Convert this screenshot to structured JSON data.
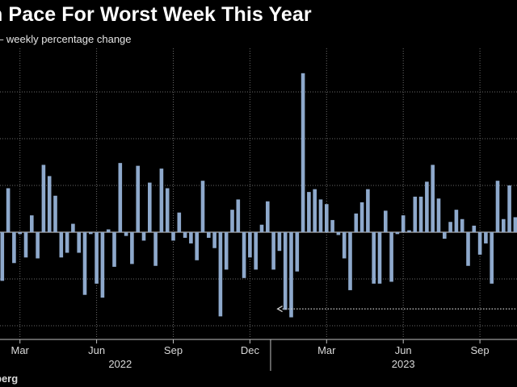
{
  "title": "n Pace For Worst Week This Year",
  "subtitle": "– weekly percentage change",
  "source": "berg",
  "chart_data": {
    "type": "bar",
    "ylim": [
      -1.05,
      1.7
    ],
    "y_gridlines": [
      -1,
      -0.5,
      0,
      0.5,
      1,
      1.5
    ],
    "values": [
      -0.52,
      0.47,
      -0.33,
      -0.02,
      -0.27,
      0.18,
      -0.28,
      0.72,
      0.6,
      0.39,
      -0.27,
      -0.22,
      0.09,
      -0.22,
      -0.67,
      -0.02,
      -0.55,
      -0.7,
      0.03,
      -0.37,
      0.74,
      -0.04,
      -0.34,
      0.71,
      -0.09,
      0.53,
      -0.36,
      0.68,
      0.47,
      -0.09,
      0.21,
      -0.06,
      -0.12,
      -0.3,
      0.55,
      -0.06,
      -0.17,
      -0.9,
      -0.4,
      0.24,
      0.35,
      -0.49,
      -0.27,
      -0.4,
      0.08,
      0.33,
      -0.4,
      -0.2,
      -0.83,
      -0.91,
      -0.42,
      1.7,
      0.43,
      0.46,
      0.35,
      0.3,
      0.13,
      -0.03,
      -0.28,
      -0.62,
      0.2,
      0.32,
      0.46,
      -0.55,
      -0.55,
      0.23,
      -0.53,
      -0.02,
      0.18,
      0.02,
      0.38,
      0.38,
      0.54,
      0.72,
      0.36,
      -0.07,
      0.11,
      0.24,
      0.14,
      -0.36,
      0.07,
      -0.24,
      -0.12,
      -0.55,
      0.55,
      0.14,
      0.5,
      0.16
    ],
    "months": [
      {
        "label": "Mar",
        "index": 3
      },
      {
        "label": "Jun",
        "index": 16
      },
      {
        "label": "Sep",
        "index": 29
      },
      {
        "label": "Dec",
        "index": 42
      },
      {
        "label": "Mar",
        "index": 55
      },
      {
        "label": "Jun",
        "index": 68
      },
      {
        "label": "Sep",
        "index": 81
      }
    ],
    "years": [
      {
        "label": "2022",
        "index": 20
      },
      {
        "label": "2023",
        "index": 68
      }
    ],
    "year_divider_index": 45.5,
    "annotation": {
      "type": "dotted-arrow",
      "from_index": 47,
      "to_index": 90,
      "y": -0.82
    },
    "colors": {
      "bar": "#8ea9cc",
      "grid": "#6a6a6a",
      "axis": "#bfbfbf",
      "background": "#000000"
    }
  }
}
